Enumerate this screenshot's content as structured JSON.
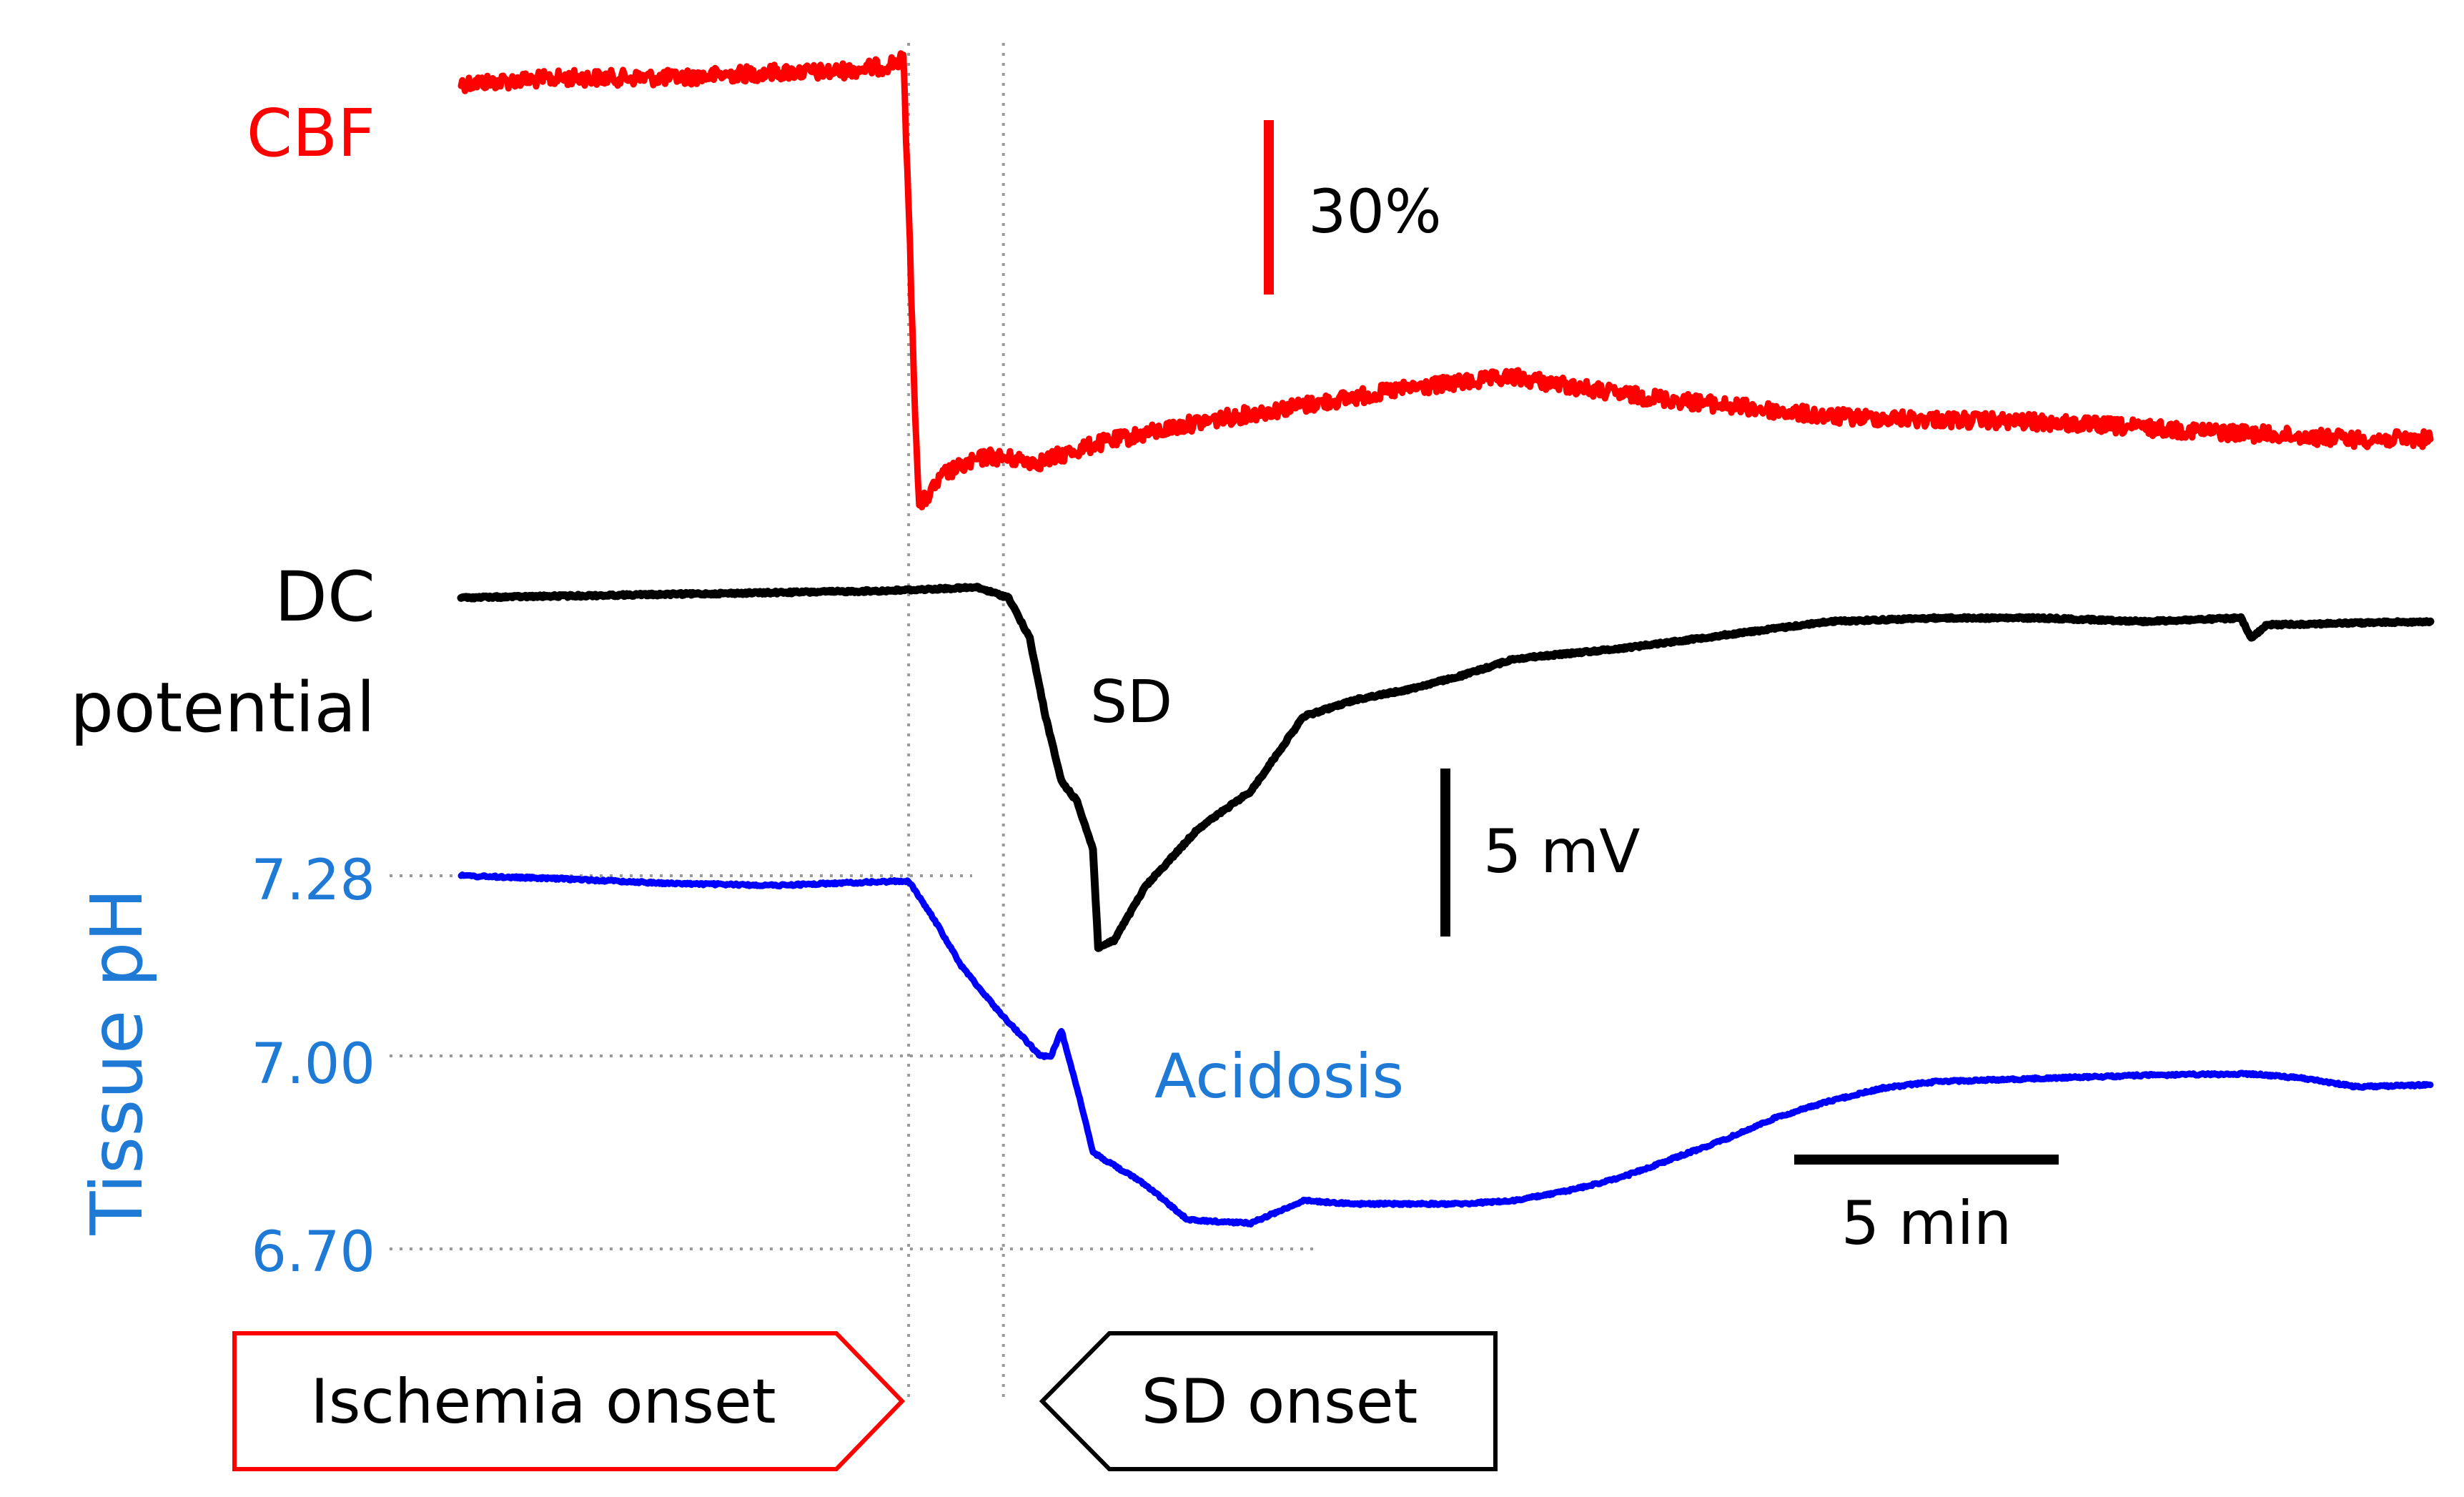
{
  "colors": {
    "cbf": "#ff0000",
    "dc": "#000000",
    "ph_trace": "#0000ff",
    "ph_text": "#1f7ad6",
    "guide": "#9a9a9a",
    "ischemia_box": "#ff0000",
    "sd_box": "#000000"
  },
  "chart_data": {
    "type": "line",
    "x_unit": "min",
    "x_range": [
      0,
      37.4
    ],
    "grid": false,
    "series": [
      {
        "name": "CBF",
        "unit": "% (relative)",
        "points": [
          [
            0,
            97
          ],
          [
            2,
            98
          ],
          [
            4,
            98
          ],
          [
            6,
            99
          ],
          [
            7,
            99
          ],
          [
            8,
            100
          ],
          [
            8.3,
            101
          ],
          [
            8.4,
            101
          ],
          [
            8.5,
            75
          ],
          [
            8.6,
            45
          ],
          [
            8.7,
            22
          ],
          [
            9.2,
            28
          ],
          [
            10,
            31
          ],
          [
            11,
            30
          ],
          [
            12,
            33
          ],
          [
            13,
            35
          ],
          [
            14,
            37
          ],
          [
            16,
            40
          ],
          [
            18,
            43
          ],
          [
            20,
            45
          ],
          [
            22,
            42
          ],
          [
            24,
            40
          ],
          [
            26,
            38
          ],
          [
            28,
            37.5
          ],
          [
            30,
            37
          ],
          [
            32,
            36
          ],
          [
            34,
            35
          ],
          [
            36,
            34
          ],
          [
            37.4,
            34
          ]
        ]
      },
      {
        "name": "DC potential",
        "unit": "mV",
        "points": [
          [
            0,
            0
          ],
          [
            4,
            0.1
          ],
          [
            8,
            0.2
          ],
          [
            9.8,
            0.3
          ],
          [
            10.4,
            0
          ],
          [
            10.8,
            -1.2
          ],
          [
            11.1,
            -3.5
          ],
          [
            11.4,
            -5.4
          ],
          [
            11.7,
            -6
          ],
          [
            12.0,
            -7.4
          ],
          [
            12.1,
            -10.3
          ],
          [
            12.4,
            -10.1
          ],
          [
            13,
            -8.5
          ],
          [
            14,
            -6.8
          ],
          [
            15,
            -5.7
          ],
          [
            16,
            -3.5
          ],
          [
            17,
            -3.0
          ],
          [
            18,
            -2.7
          ],
          [
            19,
            -2.3
          ],
          [
            20,
            -1.8
          ],
          [
            22,
            -1.5
          ],
          [
            24,
            -1.1
          ],
          [
            26,
            -0.7
          ],
          [
            28,
            -0.6
          ],
          [
            30,
            -0.6
          ],
          [
            32,
            -0.7
          ],
          [
            33.8,
            -0.6
          ],
          [
            34.0,
            -1.2
          ],
          [
            34.3,
            -0.8
          ],
          [
            37.4,
            -0.7
          ]
        ]
      },
      {
        "name": "Tissue pH",
        "unit": "pH",
        "points": [
          [
            0,
            7.28
          ],
          [
            2,
            7.275
          ],
          [
            4,
            7.268
          ],
          [
            6,
            7.265
          ],
          [
            7,
            7.268
          ],
          [
            8.5,
            7.272
          ],
          [
            9.0,
            7.21
          ],
          [
            9.5,
            7.14
          ],
          [
            10.2,
            7.07
          ],
          [
            11.0,
            7.0
          ],
          [
            11.2,
            6.998
          ],
          [
            11.4,
            7.04
          ],
          [
            11.7,
            6.95
          ],
          [
            12.0,
            6.85
          ],
          [
            13,
            6.8
          ],
          [
            13.8,
            6.745
          ],
          [
            15,
            6.74
          ],
          [
            16,
            6.775
          ],
          [
            17,
            6.77
          ],
          [
            18,
            6.77
          ],
          [
            19,
            6.77
          ],
          [
            20,
            6.775
          ],
          [
            21,
            6.79
          ],
          [
            22,
            6.81
          ],
          [
            23,
            6.84
          ],
          [
            24,
            6.87
          ],
          [
            25,
            6.905
          ],
          [
            26,
            6.93
          ],
          [
            27,
            6.95
          ],
          [
            28,
            6.96
          ],
          [
            30,
            6.965
          ],
          [
            32,
            6.97
          ],
          [
            34,
            6.972
          ],
          [
            35,
            6.965
          ],
          [
            36,
            6.952
          ],
          [
            37.4,
            6.955
          ]
        ]
      }
    ],
    "labels": {
      "cbf": "CBF",
      "dc_line1": "DC",
      "dc_line2": "potential",
      "ph_axis": "Tissue pH",
      "sd": "SD",
      "acidosis": "Acidosis"
    },
    "ph_ticks": [
      "7.28",
      "7.00",
      "6.70"
    ],
    "ph_tick_values": [
      7.28,
      7.0,
      6.7
    ],
    "scale_bars": {
      "cbf": "30%",
      "dc": "5 mV",
      "time": "5 min"
    },
    "markers": [
      {
        "label": "Ischemia onset",
        "x_min": 8.5
      },
      {
        "label": "SD onset",
        "x_min": 10.3
      }
    ]
  }
}
